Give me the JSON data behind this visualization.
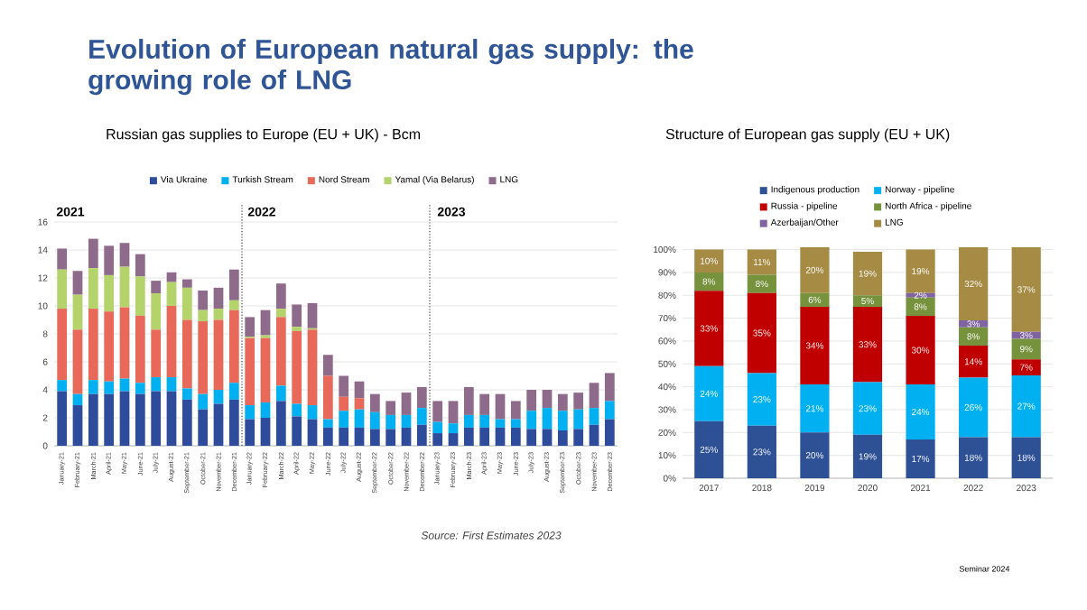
{
  "chart_data": [
    {
      "type": "bar",
      "title": "Evolution of European natural gas supply: the growing role of LNG",
      "subtitle": "Russian gas supplies to Europe (EU + UK) - Bcm",
      "stacked": true,
      "grid": "y",
      "legend": "top",
      "categories": [
        "January-21",
        "February-21",
        "March-21",
        "April-21",
        "May-21",
        "June-21",
        "July-21",
        "August-21",
        "September-21",
        "October-21",
        "November-21",
        "December-21",
        "January-22",
        "February-22",
        "March-22",
        "April-22",
        "May-22",
        "June-22",
        "July-22",
        "August-22",
        "September-22",
        "October-22",
        "November-22",
        "December-22",
        "January-23",
        "February-23",
        "March-23",
        "April-23",
        "May-23",
        "June-23",
        "July-23",
        "August-23",
        "September-23",
        "October-23",
        "November-23",
        "December-23"
      ],
      "ylim": [
        0,
        16
      ],
      "yticks": [
        0,
        2,
        4,
        6,
        8,
        10,
        12,
        14,
        16
      ],
      "series": [
        {
          "name": "Via Ukraine",
          "color": "#2f4c9c",
          "values": [
            3.9,
            2.9,
            3.7,
            3.7,
            3.9,
            3.7,
            3.9,
            3.9,
            3.3,
            2.6,
            3.0,
            3.3,
            1.9,
            2.0,
            3.2,
            2.1,
            1.9,
            1.3,
            1.3,
            1.3,
            1.2,
            1.2,
            1.3,
            1.5,
            0.9,
            0.9,
            1.3,
            1.3,
            1.3,
            1.3,
            1.2,
            1.2,
            1.1,
            1.2,
            1.5,
            1.9
          ]
        },
        {
          "name": "Turkish Stream",
          "color": "#00b0f0",
          "values": [
            0.8,
            0.8,
            1.0,
            0.9,
            0.9,
            0.8,
            1.0,
            1.0,
            0.8,
            1.1,
            1.0,
            1.2,
            1.0,
            1.1,
            1.1,
            0.9,
            1.0,
            0.6,
            1.2,
            1.3,
            1.2,
            1.0,
            0.9,
            1.2,
            0.8,
            0.7,
            0.9,
            0.9,
            0.6,
            0.6,
            1.3,
            1.5,
            1.4,
            1.4,
            1.2,
            1.3
          ]
        },
        {
          "name": "Nord Stream",
          "color": "#e8685a",
          "values": [
            5.1,
            4.6,
            5.1,
            5.0,
            5.1,
            4.8,
            3.4,
            5.1,
            4.9,
            5.2,
            5.0,
            5.2,
            4.8,
            4.6,
            4.9,
            5.2,
            5.4,
            3.1,
            1.0,
            0.8,
            0,
            0,
            0,
            0,
            0,
            0,
            0,
            0,
            0,
            0,
            0,
            0,
            0,
            0,
            0,
            0
          ]
        },
        {
          "name": "Yamal (Via Belarus)",
          "color": "#b5d36b",
          "values": [
            2.8,
            2.5,
            2.9,
            2.6,
            2.9,
            2.8,
            2.6,
            1.7,
            2.3,
            0.8,
            0.8,
            0.7,
            0.1,
            0.2,
            0.6,
            0.3,
            0.1,
            0,
            0,
            0,
            0,
            0,
            0,
            0,
            0,
            0,
            0,
            0,
            0,
            0,
            0,
            0,
            0,
            0,
            0,
            0
          ]
        },
        {
          "name": "LNG",
          "color": "#8e6b8a",
          "values": [
            1.5,
            1.7,
            2.1,
            2.1,
            1.7,
            1.6,
            0.9,
            0.7,
            0.6,
            1.4,
            1.5,
            2.2,
            1.4,
            1.8,
            1.8,
            1.6,
            1.8,
            1.5,
            1.5,
            1.2,
            1.3,
            1.0,
            1.6,
            1.5,
            1.5,
            1.6,
            2.0,
            1.5,
            1.8,
            1.3,
            1.5,
            1.3,
            1.2,
            1.2,
            1.8,
            2.0
          ]
        }
      ],
      "annotations": [
        "2021",
        "2022",
        "2023",
        "Source: First Estimates 2023"
      ]
    },
    {
      "type": "bar",
      "title": "Structure of European gas supply (EU + UK)",
      "stacked": true,
      "grid": "y",
      "legend": "top",
      "categories": [
        "2017",
        "2018",
        "2019",
        "2020",
        "2021",
        "2022",
        "2023"
      ],
      "ylim": [
        0,
        101
      ],
      "yticks": [
        {
          "value": 0,
          "label": "0%"
        },
        {
          "value": 10,
          "label": "10%"
        },
        {
          "value": 20,
          "label": "20%"
        },
        {
          "value": 30,
          "label": "30%"
        },
        {
          "value": 40,
          "label": "40%"
        },
        {
          "value": 50,
          "label": "50%"
        },
        {
          "value": 60,
          "label": "60%"
        },
        {
          "value": 70,
          "label": "70%"
        },
        {
          "value": 80,
          "label": "80%"
        },
        {
          "value": 90,
          "label": "90%"
        },
        {
          "value": 100,
          "label": "100%"
        }
      ],
      "series": [
        {
          "name": "Indigenous production",
          "color": "#2e5196",
          "values": [
            25,
            23,
            20,
            19,
            17,
            18,
            18
          ],
          "value_labels": [
            "25%",
            "23%",
            "20%",
            "19%",
            "17%",
            "18%",
            "18%"
          ]
        },
        {
          "name": "Norway - pipeline",
          "color": "#00b0f0",
          "values": [
            24,
            23,
            21,
            23,
            24,
            26,
            27
          ],
          "value_labels": [
            "24%",
            "23%",
            "21%",
            "23%",
            "24%",
            "26%",
            "27%"
          ]
        },
        {
          "name": "Russia - pipeline",
          "color": "#c00000",
          "values": [
            33,
            35,
            34,
            33,
            30,
            14,
            7
          ],
          "value_labels": [
            "33%",
            "35%",
            "34%",
            "33%",
            "30%",
            "14%",
            "7%"
          ]
        },
        {
          "name": "North Africa - pipeline",
          "color": "#76923c",
          "values": [
            8,
            8,
            6,
            5,
            8,
            8,
            9
          ],
          "value_labels": [
            "8%",
            "8%",
            "6%",
            "5%",
            "8%",
            "8%",
            "9%"
          ]
        },
        {
          "name": "Azerbaijan/Other",
          "color": "#8064a2",
          "values": [
            0,
            0,
            0,
            0,
            2,
            3,
            3
          ],
          "value_labels": [
            null,
            null,
            null,
            null,
            "2%",
            "3%",
            "3%"
          ]
        },
        {
          "name": "LNG",
          "color": "#a68b45",
          "values": [
            10,
            11,
            20,
            19,
            19,
            32,
            37
          ],
          "value_labels": [
            "10%",
            "11%",
            "20%",
            "19%",
            "19%",
            "32%",
            "37%"
          ]
        }
      ],
      "annotations": [
        "Seminar 2024"
      ]
    }
  ]
}
